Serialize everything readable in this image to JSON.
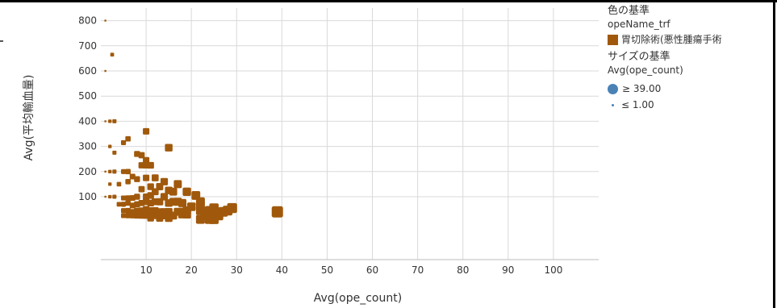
{
  "chart_data": {
    "type": "scatter",
    "xlabel": "Avg(ope_count)",
    "ylabel": "Avg(平均輸血量)",
    "xlim": [
      0,
      110
    ],
    "ylim": [
      -150,
      850
    ],
    "x_ticks": [
      10,
      20,
      30,
      40,
      50,
      60,
      70,
      80,
      90,
      100
    ],
    "y_ticks": [
      100,
      200,
      300,
      400,
      500,
      600,
      700,
      800
    ],
    "color": "#a0590c",
    "grid": true,
    "legend_position": "right",
    "series": [
      {
        "name": "胃切除術(悪性腫瘍手術",
        "points": [
          [
            1,
            800
          ],
          [
            2.5,
            665
          ],
          [
            1,
            600
          ],
          [
            1,
            400
          ],
          [
            2,
            400
          ],
          [
            3,
            400
          ],
          [
            2,
            300
          ],
          [
            3,
            275
          ],
          [
            5,
            315
          ],
          [
            6,
            330
          ],
          [
            8,
            270
          ],
          [
            9,
            265
          ],
          [
            10,
            360
          ],
          [
            15,
            295
          ],
          [
            10,
            245
          ],
          [
            9,
            225
          ],
          [
            10,
            225
          ],
          [
            11,
            225
          ],
          [
            1,
            200
          ],
          [
            2,
            200
          ],
          [
            3,
            200
          ],
          [
            5,
            200
          ],
          [
            6,
            200
          ],
          [
            2,
            150
          ],
          [
            4,
            150
          ],
          [
            6,
            160
          ],
          [
            7,
            180
          ],
          [
            8,
            170
          ],
          [
            10,
            175
          ],
          [
            12,
            175
          ],
          [
            14,
            160
          ],
          [
            17,
            150
          ],
          [
            13,
            140
          ],
          [
            9,
            130
          ],
          [
            11,
            140
          ],
          [
            12,
            120
          ],
          [
            15,
            125
          ],
          [
            16,
            120
          ],
          [
            19,
            120
          ],
          [
            1,
            100
          ],
          [
            2,
            100
          ],
          [
            3,
            100
          ],
          [
            5,
            95
          ],
          [
            6,
            95
          ],
          [
            7,
            95
          ],
          [
            8,
            100
          ],
          [
            10,
            100
          ],
          [
            11,
            105
          ],
          [
            14,
            100
          ],
          [
            21,
            105
          ],
          [
            22,
            80
          ],
          [
            4,
            70
          ],
          [
            5,
            70
          ],
          [
            6,
            75
          ],
          [
            7,
            65
          ],
          [
            8,
            70
          ],
          [
            9,
            75
          ],
          [
            10,
            80
          ],
          [
            11,
            75
          ],
          [
            12,
            80
          ],
          [
            13,
            80
          ],
          [
            15,
            75
          ],
          [
            16,
            80
          ],
          [
            17,
            80
          ],
          [
            18,
            75
          ],
          [
            20,
            60
          ],
          [
            22,
            65
          ],
          [
            25,
            55
          ],
          [
            29,
            55
          ],
          [
            5,
            45
          ],
          [
            6,
            45
          ],
          [
            7,
            40
          ],
          [
            8,
            45
          ],
          [
            9,
            45
          ],
          [
            10,
            50
          ],
          [
            11,
            45
          ],
          [
            12,
            45
          ],
          [
            13,
            40
          ],
          [
            14,
            40
          ],
          [
            15,
            40
          ],
          [
            17,
            40
          ],
          [
            18,
            40
          ],
          [
            19,
            45
          ],
          [
            22,
            45
          ],
          [
            23,
            40
          ],
          [
            24,
            45
          ],
          [
            27,
            40
          ],
          [
            28,
            45
          ],
          [
            39,
            40
          ],
          [
            5,
            25
          ],
          [
            6,
            25
          ],
          [
            7,
            25
          ],
          [
            8,
            25
          ],
          [
            9,
            25
          ],
          [
            10,
            25
          ],
          [
            11,
            30
          ],
          [
            12,
            25
          ],
          [
            13,
            25
          ],
          [
            14,
            25
          ],
          [
            15,
            30
          ],
          [
            16,
            25
          ],
          [
            18,
            30
          ],
          [
            19,
            30
          ],
          [
            23,
            25
          ],
          [
            24,
            25
          ],
          [
            26,
            25
          ],
          [
            11,
            15
          ],
          [
            13,
            15
          ],
          [
            15,
            15
          ],
          [
            22,
            10
          ],
          [
            24,
            10
          ],
          [
            25,
            10
          ]
        ]
      }
    ]
  },
  "legend": {
    "color_title": "色の基準",
    "color_field": "opeName_trf",
    "color_item": "胃切除術(悪性腫瘍手術",
    "size_title": "サイズの基準",
    "size_field": "Avg(ope_count)",
    "size_max_label": "≥ 39.00",
    "size_min_label": "≤ 1.00",
    "size_color": "#4a82b6",
    "size_min_value": 1,
    "size_max_value": 39
  }
}
